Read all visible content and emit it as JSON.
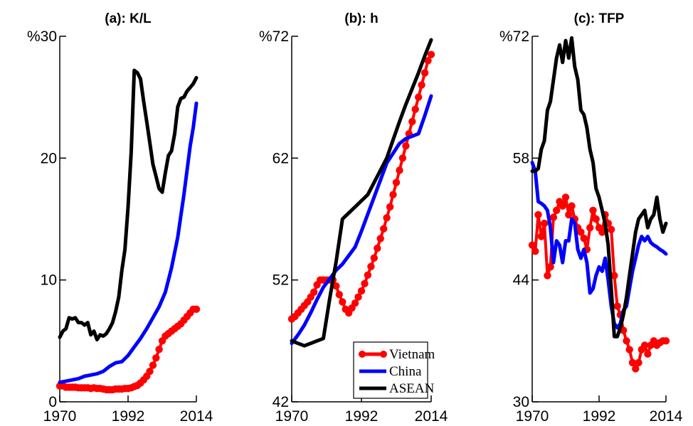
{
  "chart_data": [
    {
      "type": "line",
      "title": "(a): K/L",
      "x_ticks": [
        "1970",
        "1992",
        "2014"
      ],
      "y_ticks": [
        "0",
        "10",
        "20",
        "%30"
      ],
      "xlim": [
        1970,
        2014
      ],
      "ylim": [
        0,
        30
      ],
      "legend": null,
      "series": [
        {
          "name": "Vietnam",
          "color": "#ff0000",
          "marker": "circle",
          "x": [
            1970,
            1971,
            1972,
            1973,
            1974,
            1975,
            1976,
            1977,
            1978,
            1979,
            1980,
            1981,
            1982,
            1983,
            1984,
            1985,
            1986,
            1987,
            1988,
            1989,
            1990,
            1991,
            1992,
            1993,
            1994,
            1995,
            1996,
            1997,
            1998,
            1999,
            2000,
            2001,
            2002,
            2003,
            2004,
            2005,
            2006,
            2007,
            2008,
            2009,
            2010,
            2011,
            2012,
            2013,
            2014
          ],
          "y": [
            1.3,
            1.3,
            1.2,
            1.2,
            1.2,
            1.2,
            1.15,
            1.15,
            1.15,
            1.15,
            1.1,
            1.15,
            1.1,
            1.1,
            1.05,
            1.0,
            1.0,
            1.0,
            1.05,
            1.05,
            1.05,
            1.1,
            1.1,
            1.15,
            1.25,
            1.35,
            1.55,
            1.8,
            2.1,
            2.5,
            3.0,
            3.6,
            4.3,
            5.0,
            5.4,
            5.6,
            5.8,
            6.0,
            6.2,
            6.4,
            6.7,
            7.0,
            7.3,
            7.6,
            7.6
          ]
        },
        {
          "name": "China",
          "color": "#0000ff",
          "marker": "none",
          "x": [
            1970,
            1972,
            1974,
            1976,
            1978,
            1980,
            1982,
            1984,
            1986,
            1988,
            1990,
            1992,
            1994,
            1996,
            1998,
            2000,
            2002,
            2004,
            2006,
            2008,
            2010,
            2012,
            2013,
            2014
          ],
          "y": [
            1.6,
            1.7,
            1.8,
            1.9,
            2.1,
            2.2,
            2.3,
            2.5,
            2.9,
            3.2,
            3.3,
            3.8,
            4.5,
            5.2,
            6.0,
            6.9,
            7.8,
            9.0,
            11.0,
            13.5,
            17.0,
            21.0,
            22.5,
            24.5
          ]
        },
        {
          "name": "ASEAN",
          "color": "#000000",
          "marker": "none",
          "x": [
            1970,
            1971,
            1972,
            1973,
            1974,
            1975,
            1976,
            1977,
            1978,
            1979,
            1980,
            1981,
            1982,
            1983,
            1984,
            1985,
            1986,
            1987,
            1988,
            1989,
            1990,
            1991,
            1992,
            1993,
            1994,
            1995,
            1996,
            1997,
            1998,
            1999,
            2000,
            2001,
            2002,
            2003,
            2004,
            2005,
            2006,
            2007,
            2008,
            2009,
            2010,
            2011,
            2012,
            2013,
            2014
          ],
          "y": [
            5.3,
            5.8,
            6.0,
            6.9,
            6.8,
            6.9,
            6.5,
            6.5,
            6.3,
            6.5,
            5.5,
            5.8,
            5.1,
            5.5,
            5.4,
            5.6,
            6.0,
            6.5,
            7.4,
            8.6,
            10.8,
            12.5,
            16.0,
            20.5,
            27.2,
            27.0,
            26.5,
            24.7,
            23.0,
            21.3,
            19.5,
            18.5,
            17.5,
            17.2,
            18.8,
            20.2,
            20.6,
            22.0,
            24.2,
            24.9,
            25.0,
            25.5,
            25.8,
            26.1,
            26.6
          ]
        }
      ]
    },
    {
      "type": "line",
      "title": "(b): h",
      "x_ticks": [
        "1970",
        "1992",
        "2014"
      ],
      "y_ticks": [
        "42",
        "52",
        "62",
        "%72"
      ],
      "xlim": [
        1970,
        2014
      ],
      "ylim": [
        42,
        72
      ],
      "legend": {
        "position": "bottom-right",
        "entries": [
          "Vietnam",
          "China",
          "ASEAN"
        ]
      },
      "series": [
        {
          "name": "Vietnam",
          "color": "#ff0000",
          "marker": "circle",
          "x": [
            1970,
            1971,
            1972,
            1973,
            1974,
            1975,
            1976,
            1977,
            1978,
            1979,
            1980,
            1981,
            1982,
            1983,
            1984,
            1985,
            1986,
            1987,
            1988,
            1989,
            1990,
            1991,
            1992,
            1993,
            1994,
            1995,
            1996,
            1997,
            1998,
            1999,
            2000,
            2001,
            2002,
            2003,
            2004,
            2005,
            2006,
            2007,
            2008,
            2009,
            2010,
            2011,
            2012,
            2013,
            2014
          ],
          "y": [
            48.8,
            49.0,
            49.3,
            49.6,
            49.9,
            50.2,
            50.6,
            51.0,
            51.6,
            52.0,
            52.0,
            52.0,
            52.0,
            52.0,
            51.5,
            50.8,
            50.2,
            49.6,
            49.3,
            49.7,
            50.1,
            50.6,
            51.1,
            51.7,
            52.4,
            53.1,
            53.8,
            54.6,
            55.4,
            56.2,
            57.1,
            58.0,
            59.0,
            60.0,
            61.0,
            62.0,
            63.0,
            64.0,
            65.0,
            66.0,
            67.0,
            68.0,
            69.0,
            70.0,
            70.5
          ]
        },
        {
          "name": "China",
          "color": "#0000ff",
          "marker": "none",
          "x": [
            1970,
            1972,
            1974,
            1976,
            1978,
            1980,
            1982,
            1984,
            1986,
            1988,
            1990,
            1992,
            1994,
            1996,
            1998,
            2000,
            2002,
            2004,
            2006,
            2008,
            2010,
            2012,
            2014
          ],
          "y": [
            46.8,
            47.5,
            48.3,
            49.3,
            50.4,
            51.4,
            52.1,
            52.8,
            53.3,
            54.0,
            54.7,
            56.0,
            57.4,
            58.8,
            60.2,
            61.6,
            62.4,
            63.2,
            63.6,
            63.8,
            64.0,
            65.5,
            67.1
          ]
        },
        {
          "name": "ASEAN",
          "color": "#000000",
          "marker": "none",
          "x": [
            1970,
            1972,
            1974,
            1976,
            1978,
            1980,
            1982,
            1984,
            1986,
            1988,
            1990,
            1992,
            1994,
            1996,
            1998,
            2000,
            2002,
            2004,
            2006,
            2008,
            2010,
            2012,
            2014
          ],
          "y": [
            47.0,
            46.8,
            46.6,
            46.8,
            47.0,
            47.2,
            50.5,
            53.5,
            57.0,
            57.5,
            58.0,
            58.5,
            59.0,
            60.0,
            61.0,
            62.0,
            63.5,
            65.0,
            66.4,
            67.7,
            69.0,
            70.4,
            71.7
          ]
        }
      ]
    },
    {
      "type": "line",
      "title": "(c): TFP",
      "x_ticks": [
        "1970",
        "1992",
        "2014"
      ],
      "y_ticks": [
        "30",
        "44",
        "58",
        "%72"
      ],
      "xlim": [
        1970,
        2014
      ],
      "ylim": [
        30,
        72
      ],
      "legend": null,
      "series": [
        {
          "name": "Vietnam",
          "color": "#ff0000",
          "marker": "circle",
          "x": [
            1970,
            1971,
            1972,
            1973,
            1974,
            1975,
            1976,
            1977,
            1978,
            1979,
            1980,
            1981,
            1982,
            1983,
            1984,
            1985,
            1986,
            1987,
            1988,
            1989,
            1990,
            1991,
            1992,
            1993,
            1994,
            1995,
            1996,
            1997,
            1998,
            1999,
            2000,
            2001,
            2002,
            2003,
            2004,
            2005,
            2006,
            2007,
            2008,
            2009,
            2010,
            2011,
            2012,
            2013,
            2014
          ],
          "y": [
            48.0,
            47.3,
            51.5,
            49.0,
            50.5,
            44.5,
            45.5,
            51.2,
            52.0,
            53.0,
            52.5,
            53.5,
            51.5,
            52.5,
            51.0,
            50.0,
            49.5,
            48.8,
            47.5,
            50.0,
            52.0,
            51.0,
            50.0,
            49.5,
            51.5,
            50.5,
            49.8,
            44.5,
            41.0,
            40.0,
            38.2,
            37.0,
            36.0,
            34.5,
            33.8,
            34.5,
            36.0,
            36.5,
            35.5,
            36.5,
            37.0,
            36.5,
            36.8,
            37.0,
            37.0
          ]
        },
        {
          "name": "China",
          "color": "#0000ff",
          "marker": "none",
          "x": [
            1970,
            1971,
            1972,
            1973,
            1974,
            1975,
            1976,
            1977,
            1978,
            1979,
            1980,
            1981,
            1982,
            1983,
            1984,
            1985,
            1986,
            1987,
            1988,
            1989,
            1990,
            1991,
            1992,
            1993,
            1994,
            1995,
            1996,
            1997,
            1998,
            1999,
            2000,
            2001,
            2002,
            2003,
            2004,
            2005,
            2006,
            2007,
            2008,
            2009,
            2010,
            2011,
            2012,
            2013,
            2014
          ],
          "y": [
            57.5,
            56.5,
            53.0,
            52.8,
            52.5,
            52.0,
            50.0,
            46.0,
            48.5,
            48.0,
            46.0,
            48.5,
            48.5,
            51.0,
            50.5,
            47.5,
            46.5,
            47.5,
            46.0,
            42.5,
            43.0,
            44.5,
            45.5,
            45.0,
            46.5,
            44.0,
            41.0,
            39.0,
            38.5,
            39.0,
            40.5,
            41.0,
            43.0,
            45.0,
            46.5,
            48.0,
            49.0,
            48.5,
            49.0,
            48.3,
            48.0,
            47.8,
            47.5,
            47.3,
            47.0
          ]
        },
        {
          "name": "ASEAN",
          "color": "#000000",
          "marker": "none",
          "x": [
            1970,
            1971,
            1972,
            1973,
            1974,
            1975,
            1976,
            1977,
            1978,
            1979,
            1980,
            1981,
            1982,
            1983,
            1984,
            1985,
            1986,
            1987,
            1988,
            1989,
            1990,
            1991,
            1992,
            1993,
            1994,
            1995,
            1996,
            1997,
            1998,
            1999,
            2000,
            2001,
            2002,
            2003,
            2004,
            2005,
            2006,
            2007,
            2008,
            2009,
            2010,
            2011,
            2012,
            2013,
            2014
          ],
          "y": [
            56.5,
            56.5,
            56.8,
            59.0,
            60.0,
            63.5,
            64.5,
            67.0,
            69.5,
            71.0,
            69.0,
            71.5,
            69.5,
            71.8,
            68.5,
            67.0,
            63.5,
            63.0,
            61.5,
            59.0,
            57.5,
            54.5,
            53.5,
            52.0,
            50.5,
            48.0,
            43.0,
            37.5,
            37.5,
            38.5,
            40.0,
            42.0,
            44.5,
            47.0,
            49.5,
            51.0,
            51.5,
            52.0,
            50.0,
            51.0,
            51.5,
            53.5,
            51.0,
            49.5,
            50.5
          ]
        }
      ]
    }
  ]
}
